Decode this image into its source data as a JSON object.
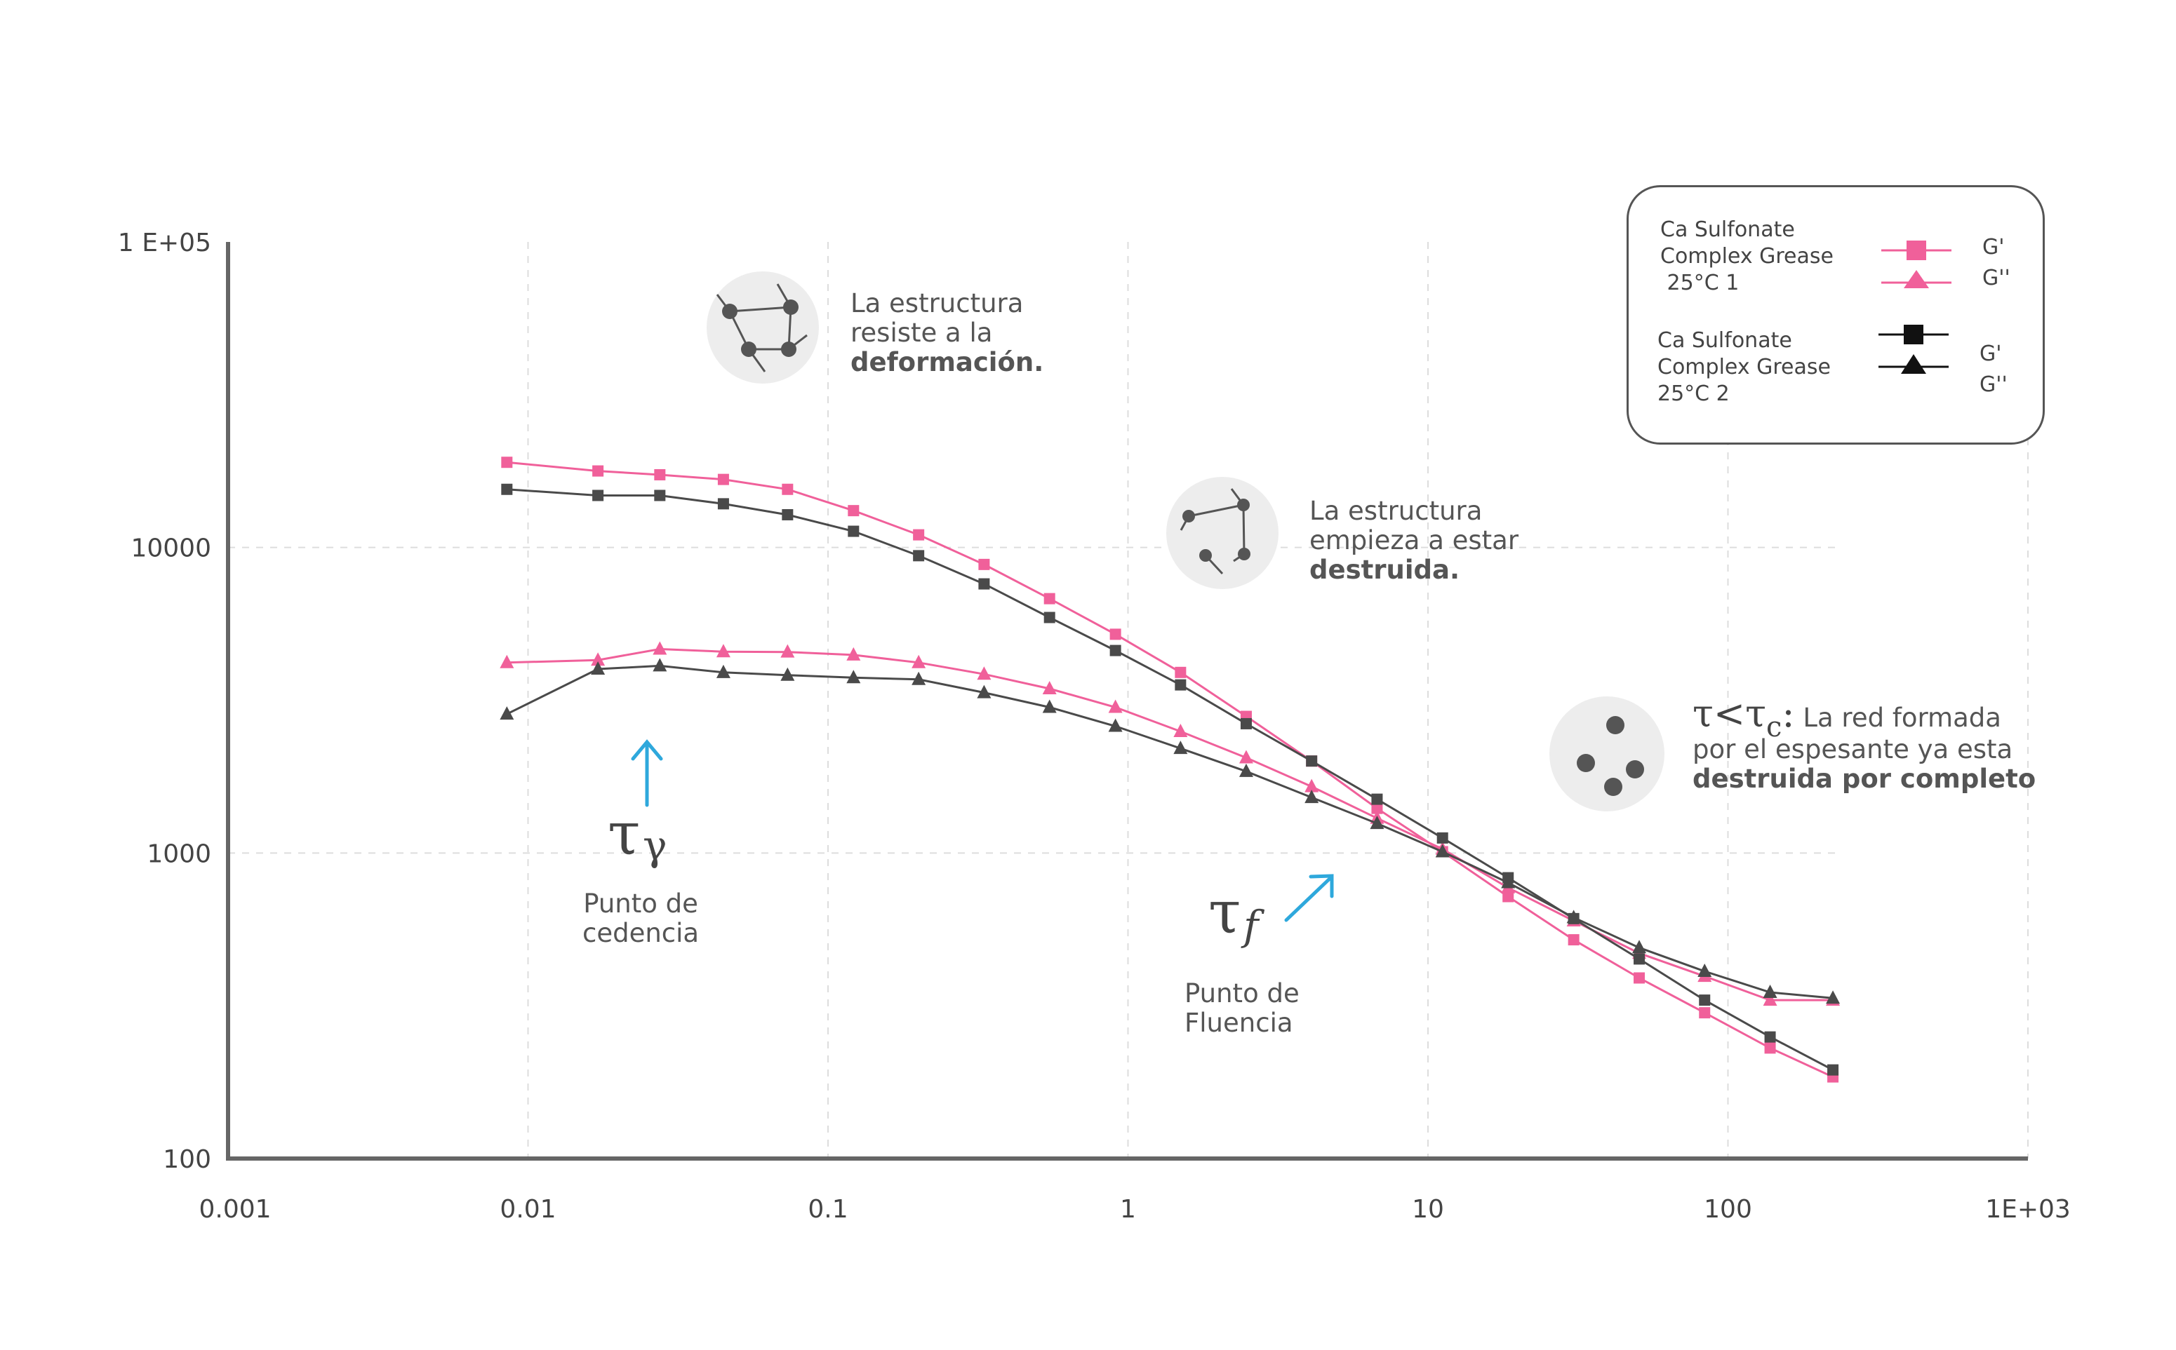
{
  "chart_data": {
    "type": "line",
    "x_scale": "log",
    "y_scale": "log",
    "xlim": [
      0.001,
      1000
    ],
    "ylim": [
      100,
      100000
    ],
    "x_tick_labels": [
      "0.001",
      "0.01",
      "0.1",
      "1",
      "10",
      "100",
      "1E+03"
    ],
    "x_tick_values": [
      0.001,
      0.01,
      0.1,
      1,
      10,
      100,
      1000
    ],
    "y_tick_labels": [
      "100",
      "1000",
      "10000",
      "1 E+05"
    ],
    "y_tick_values": [
      100,
      1000,
      10000,
      100000
    ],
    "grid": "dashed",
    "legend_position": "top-right",
    "x": [
      0.0085,
      0.0171,
      0.0275,
      0.0448,
      0.0733,
      0.1216,
      0.2005,
      0.3313,
      0.5476,
      0.9082,
      1.4966,
      2.4779,
      4.0938,
      6.7647,
      11.1803,
      18.5,
      30.6,
      50.6,
      83.6,
      138.2,
      223.8
    ],
    "series": [
      {
        "name": "G'",
        "group": "Ca Sulfonate Complex Grease 25°C 1",
        "color": "#f0609a",
        "marker": "square",
        "values": [
          19000,
          17800,
          17300,
          16700,
          15500,
          13200,
          11000,
          8800,
          6800,
          5200,
          3900,
          2800,
          2000,
          1400,
          1010,
          720,
          520,
          390,
          300,
          230,
          185
        ]
      },
      {
        "name": "G''",
        "group": "Ca Sulfonate Complex Grease 25°C 1",
        "color": "#f0609a",
        "marker": "triangle",
        "values": [
          4200,
          4280,
          4650,
          4560,
          4550,
          4450,
          4200,
          3850,
          3450,
          3000,
          2500,
          2050,
          1650,
          1300,
          1030,
          770,
          600,
          470,
          395,
          330,
          330
        ]
      },
      {
        "name": "G'",
        "group": "Ca Sulfonate Complex Grease 25°C 2",
        "color": "#4a4a4a",
        "marker": "square",
        "values": [
          15500,
          14800,
          14800,
          13900,
          12800,
          11300,
          9400,
          7600,
          5900,
          4600,
          3550,
          2650,
          2000,
          1500,
          1120,
          830,
          610,
          450,
          330,
          250,
          195
        ]
      },
      {
        "name": "G''",
        "group": "Ca Sulfonate Complex Grease 25°C 2",
        "color": "#4a4a4a",
        "marker": "triangle",
        "values": [
          2850,
          4000,
          4100,
          3900,
          3820,
          3750,
          3700,
          3350,
          3000,
          2600,
          2200,
          1850,
          1520,
          1250,
          1010,
          800,
          615,
          490,
          410,
          350,
          335
        ]
      }
    ]
  },
  "legend": {
    "group1_lines": [
      "Ca Sulfonate",
      "Complex Grease",
      " 25°C 1"
    ],
    "group2_lines": [
      "Ca Sulfonate",
      "Complex Grease",
      "25°C 2"
    ],
    "g_prime": "G'",
    "g_double_prime": "G''"
  },
  "annotations": {
    "resists": {
      "line1": "La estructura",
      "line2": "resiste a la",
      "line3_bold": "deformación."
    },
    "starts": {
      "line1": "La estructura",
      "line2": "empieza a estar",
      "line3_bold": "destruida."
    },
    "destroyed": {
      "prefix": "τ<τ",
      "sub": "c",
      "colon": ":",
      "line1": "La red formada",
      "line2": "por el espesante ya esta",
      "line3_bold": "destruida por completo"
    },
    "yield": {
      "symbol": "τ",
      "sub": "γ",
      "line1": "Punto de",
      "line2": "cedencia"
    },
    "flow": {
      "symbol": "τ",
      "sub": "f",
      "line1": "Punto de",
      "line2": "Fluencia"
    }
  },
  "colors": {
    "pink": "#f0609a",
    "dark": "#4a4a4a",
    "arrow": "#2ea8dc",
    "icon_bg": "#ededed",
    "axis": "#666666"
  }
}
